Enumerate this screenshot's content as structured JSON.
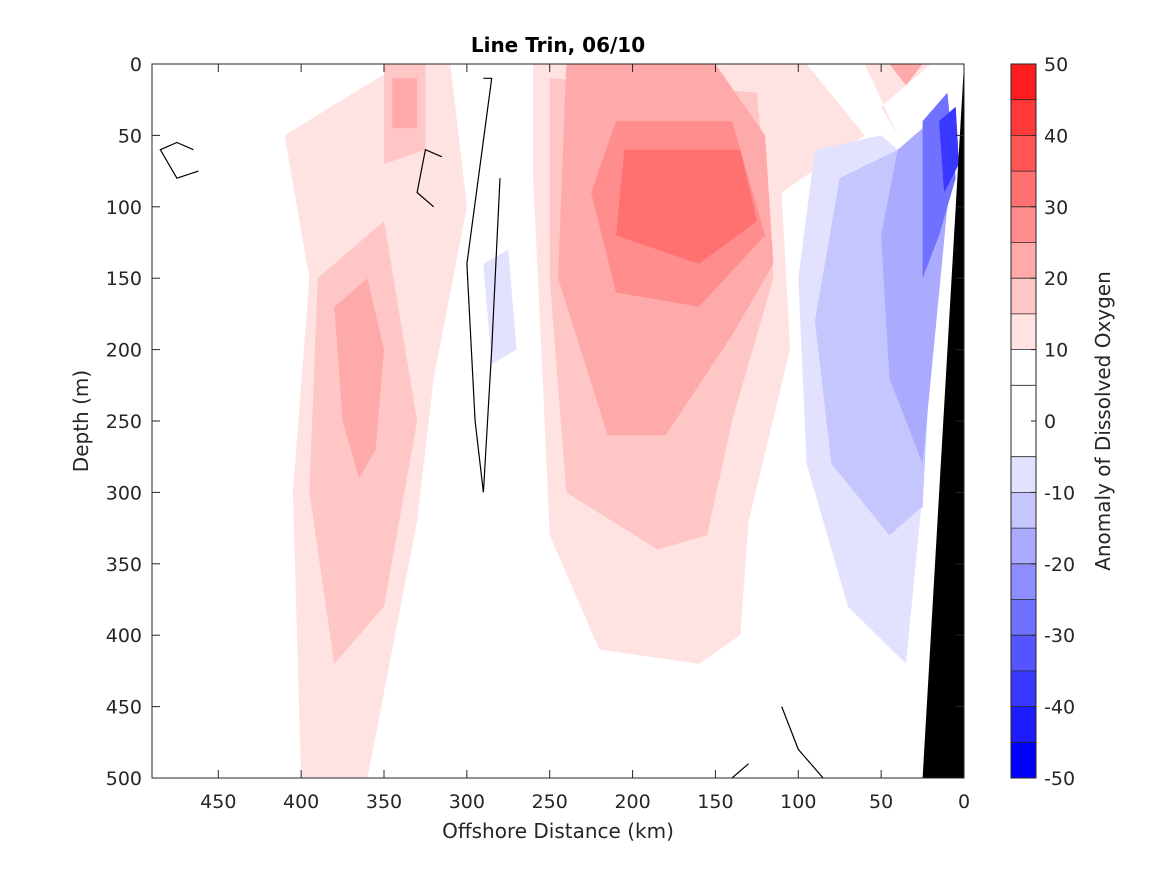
{
  "chart_data": {
    "type": "heatmap",
    "subtype": "filled-contour",
    "title": "Line Trin, 06/10",
    "xlabel": "Offshore Distance (km)",
    "ylabel": "Depth (m)",
    "colorbar_label": "Anomaly of Dissolved Oxygen",
    "x_reversed": true,
    "y_reversed": true,
    "xlim": [
      490,
      0
    ],
    "ylim": [
      0,
      500
    ],
    "x_ticks": [
      450,
      400,
      350,
      300,
      250,
      200,
      150,
      100,
      50,
      0
    ],
    "y_ticks": [
      0,
      50,
      100,
      150,
      200,
      250,
      300,
      350,
      400,
      450,
      500
    ],
    "colorbar_range": [
      -50,
      50
    ],
    "colorbar_ticks": [
      50,
      40,
      30,
      20,
      10,
      0,
      -10,
      -20,
      -30,
      -40,
      -50
    ],
    "contour_levels": [
      -50,
      -45,
      -40,
      -35,
      -30,
      -25,
      -20,
      -15,
      -10,
      -5,
      5,
      10,
      15,
      20,
      25,
      30,
      35,
      40,
      45,
      50
    ],
    "level_colors": [
      "#0000ff",
      "#1c1cff",
      "#3838ff",
      "#5555ff",
      "#7171ff",
      "#8d8dff",
      "#aaaaff",
      "#c6c6ff",
      "#e2e2ff",
      "#ffffff",
      "#ffffff",
      "#ffe2e2",
      "#ffc6c6",
      "#ffaaaa",
      "#ff8d8d",
      "#ff7171",
      "#ff5555",
      "#ff3838",
      "#ff1c1c",
      "#ff0000"
    ],
    "zero_contour_color": "#000000",
    "land_mask_color": "#000000",
    "regions": [
      {
        "level": 5,
        "points": [
          [
            490,
            0
          ],
          [
            385,
            0
          ],
          [
            385,
            500
          ],
          [
            490,
            500
          ]
        ]
      },
      {
        "level": 10,
        "points": [
          [
            340,
            0
          ],
          [
            310,
            0
          ],
          [
            300,
            100
          ],
          [
            320,
            220
          ],
          [
            330,
            320
          ],
          [
            360,
            500
          ],
          [
            400,
            500
          ],
          [
            405,
            300
          ],
          [
            395,
            150
          ],
          [
            410,
            50
          ]
        ]
      },
      {
        "level": 15,
        "points": [
          [
            350,
            0
          ],
          [
            325,
            0
          ],
          [
            325,
            60
          ],
          [
            350,
            70
          ]
        ]
      },
      {
        "level": 15,
        "points": [
          [
            390,
            150
          ],
          [
            350,
            110
          ],
          [
            330,
            250
          ],
          [
            350,
            380
          ],
          [
            380,
            420
          ],
          [
            395,
            300
          ]
        ]
      },
      {
        "level": 20,
        "points": [
          [
            345,
            10
          ],
          [
            330,
            10
          ],
          [
            330,
            45
          ],
          [
            345,
            45
          ]
        ]
      },
      {
        "level": 20,
        "points": [
          [
            380,
            170
          ],
          [
            360,
            150
          ],
          [
            350,
            200
          ],
          [
            355,
            270
          ],
          [
            365,
            290
          ],
          [
            375,
            250
          ]
        ]
      },
      {
        "level": 10,
        "points": [
          [
            260,
            0
          ],
          [
            95,
            0
          ],
          [
            60,
            50
          ],
          [
            110,
            90
          ],
          [
            105,
            200
          ],
          [
            130,
            320
          ],
          [
            135,
            400
          ],
          [
            160,
            420
          ],
          [
            220,
            410
          ],
          [
            250,
            330
          ],
          [
            255,
            200
          ],
          [
            260,
            80
          ]
        ]
      },
      {
        "level": 15,
        "points": [
          [
            250,
            10
          ],
          [
            125,
            20
          ],
          [
            115,
            150
          ],
          [
            140,
            250
          ],
          [
            155,
            330
          ],
          [
            185,
            340
          ],
          [
            240,
            300
          ],
          [
            250,
            150
          ]
        ]
      },
      {
        "level": 20,
        "points": [
          [
            240,
            0
          ],
          [
            150,
            0
          ],
          [
            120,
            50
          ],
          [
            115,
            140
          ],
          [
            140,
            190
          ],
          [
            180,
            260
          ],
          [
            215,
            260
          ],
          [
            245,
            150
          ]
        ]
      },
      {
        "level": 25,
        "points": [
          [
            210,
            40
          ],
          [
            140,
            40
          ],
          [
            120,
            120
          ],
          [
            160,
            170
          ],
          [
            210,
            160
          ],
          [
            225,
            90
          ]
        ]
      },
      {
        "level": 30,
        "points": [
          [
            205,
            60
          ],
          [
            135,
            60
          ],
          [
            125,
            110
          ],
          [
            160,
            140
          ],
          [
            210,
            120
          ]
        ]
      },
      {
        "level": 10,
        "points": [
          [
            60,
            0
          ],
          [
            20,
            0
          ],
          [
            50,
            30
          ],
          [
            40,
            50
          ]
        ]
      },
      {
        "level": 20,
        "points": [
          [
            45,
            0
          ],
          [
            25,
            0
          ],
          [
            35,
            15
          ]
        ]
      },
      {
        "level": -10,
        "points": [
          [
            90,
            60
          ],
          [
            50,
            50
          ],
          [
            20,
            80
          ],
          [
            25,
            300
          ],
          [
            35,
            420
          ],
          [
            70,
            380
          ],
          [
            95,
            280
          ],
          [
            100,
            150
          ]
        ]
      },
      {
        "level": -15,
        "points": [
          [
            75,
            80
          ],
          [
            40,
            60
          ],
          [
            15,
            90
          ],
          [
            25,
            310
          ],
          [
            45,
            330
          ],
          [
            80,
            280
          ],
          [
            90,
            180
          ]
        ]
      },
      {
        "level": -20,
        "points": [
          [
            40,
            60
          ],
          [
            20,
            40
          ],
          [
            10,
            100
          ],
          [
            25,
            280
          ],
          [
            45,
            220
          ],
          [
            50,
            120
          ]
        ]
      },
      {
        "level": -30,
        "points": [
          [
            25,
            40
          ],
          [
            10,
            20
          ],
          [
            5,
            80
          ],
          [
            15,
            120
          ],
          [
            25,
            150
          ]
        ]
      },
      {
        "level": -40,
        "points": [
          [
            15,
            40
          ],
          [
            5,
            30
          ],
          [
            3,
            70
          ],
          [
            12,
            90
          ]
        ]
      },
      {
        "level": -10,
        "points": [
          [
            290,
            140
          ],
          [
            275,
            130
          ],
          [
            270,
            200
          ],
          [
            285,
            210
          ]
        ]
      }
    ],
    "zero_contours": [
      [
        [
          465,
          60
        ],
        [
          475,
          55
        ],
        [
          485,
          60
        ],
        [
          475,
          80
        ],
        [
          462,
          75
        ]
      ],
      [
        [
          315,
          65
        ],
        [
          325,
          60
        ],
        [
          330,
          90
        ],
        [
          320,
          100
        ]
      ],
      [
        [
          290,
          10
        ],
        [
          285,
          10
        ],
        [
          300,
          140
        ],
        [
          295,
          250
        ],
        [
          290,
          300
        ],
        [
          285,
          200
        ],
        [
          280,
          80
        ]
      ],
      [
        [
          110,
          450
        ],
        [
          100,
          480
        ],
        [
          85,
          500
        ]
      ],
      [
        [
          130,
          490
        ],
        [
          140,
          500
        ]
      ]
    ],
    "land_mask": [
      [
        0,
        0
      ],
      [
        0,
        500
      ],
      [
        25,
        500
      ]
    ]
  }
}
